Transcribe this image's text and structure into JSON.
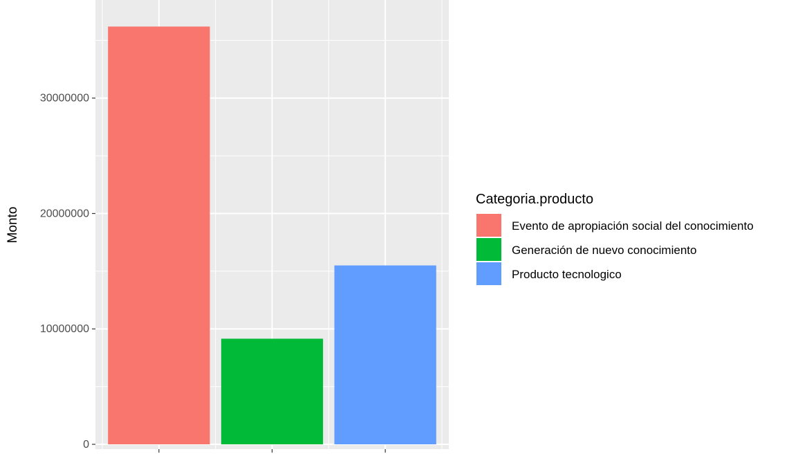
{
  "chart_data": {
    "type": "bar",
    "categories": [
      "Evento de apropiación social del conocimiento",
      "Generación de nuevo conocimiento",
      "Producto tecnologico"
    ],
    "values": [
      36200000,
      9150000,
      15500000
    ],
    "colors": [
      "#F8766D",
      "#00BA38",
      "#619CFF"
    ],
    "xlabel": "",
    "ylabel": "Monto",
    "ylim": [
      0,
      38500000
    ],
    "yticks": [
      0,
      10000000,
      20000000,
      30000000
    ],
    "ytick_labels": [
      "0",
      "10000000",
      "20000000",
      "30000000"
    ],
    "grid": true,
    "panel_background": "#EBEBEB",
    "legend": {
      "title": "Categoria.producto",
      "placement": "right",
      "entries": [
        "Evento de apropiación social del conocimiento",
        "Generación de nuevo conocimiento",
        "Producto tecnologico"
      ]
    }
  }
}
